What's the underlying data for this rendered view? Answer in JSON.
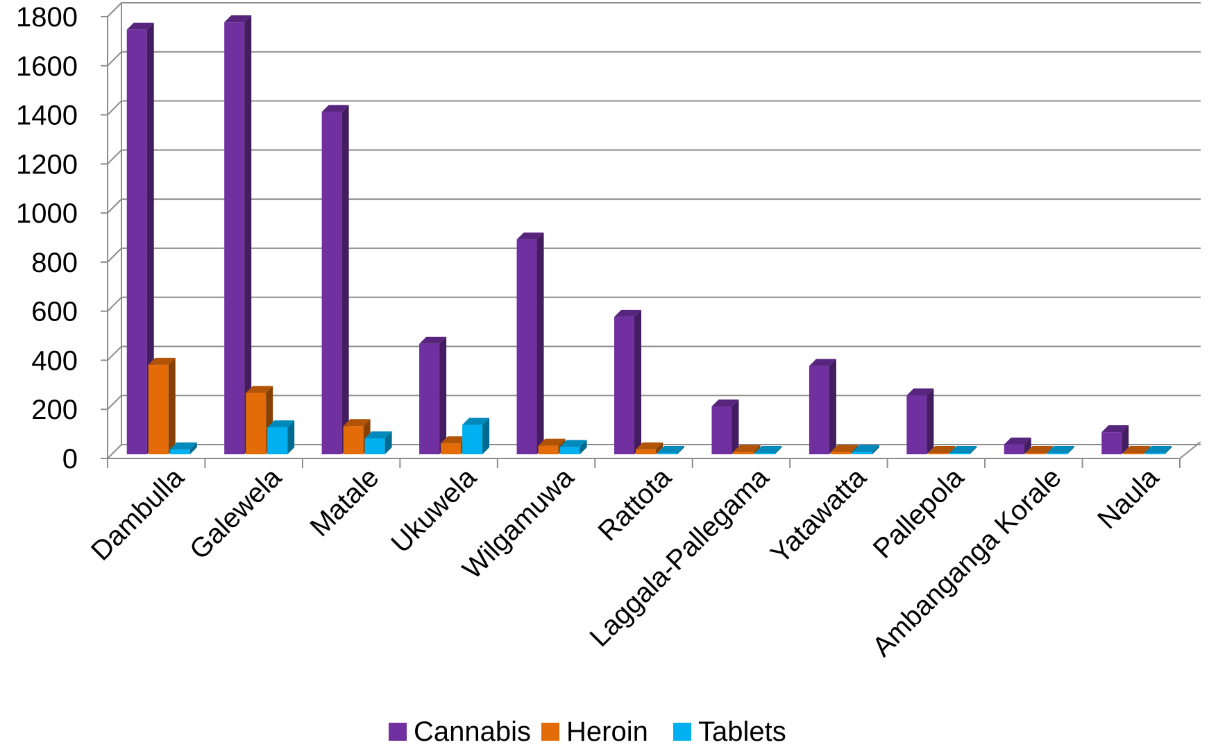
{
  "chart_data": {
    "type": "bar",
    "style": "3d-clustered-column",
    "title": "",
    "xlabel": "",
    "ylabel": "",
    "ylim": [
      0,
      1800
    ],
    "yticks": [
      0,
      200,
      400,
      600,
      800,
      1000,
      1200,
      1400,
      1600,
      1800
    ],
    "grid": true,
    "legend_position": "bottom",
    "categories": [
      "Dambulla",
      "Galewela",
      "Matale",
      "Ukuwela",
      "Wilgamuwa",
      "Rattota",
      "Laggala-Pallegama",
      "Yatawatta",
      "Pallepola",
      "Ambanganga Korale",
      "Naula"
    ],
    "series": [
      {
        "name": "Cannabis",
        "color": "#7030A0",
        "values": [
          1730,
          1760,
          1395,
          450,
          875,
          560,
          195,
          360,
          240,
          40,
          90
        ]
      },
      {
        "name": "Heroin",
        "color": "#E36C09",
        "values": [
          365,
          250,
          115,
          45,
          35,
          20,
          10,
          10,
          5,
          5,
          5
        ]
      },
      {
        "name": "Tablets",
        "color": "#00B0F0",
        "values": [
          20,
          110,
          65,
          120,
          30,
          5,
          2,
          10,
          2,
          2,
          2
        ]
      }
    ]
  }
}
